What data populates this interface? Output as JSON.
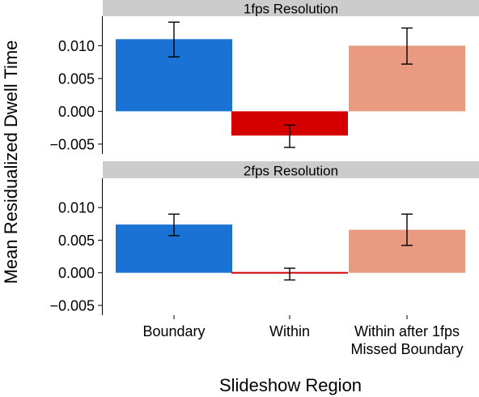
{
  "chart_data": {
    "type": "bar",
    "xlabel": "Slideshow Region",
    "ylabel": "Mean Residualized Dwell Time",
    "categories": [
      [
        "Boundary"
      ],
      [
        "Within"
      ],
      [
        "Within after 1fps",
        "Missed Boundary"
      ]
    ],
    "colors": [
      "#1a73d4",
      "#d40000",
      "#e99a80"
    ],
    "ylim": [
      -0.0065,
      0.0145
    ],
    "yticks": [
      -0.005,
      0.0,
      0.005,
      0.01
    ],
    "ytick_labels": [
      "−0.005",
      "0.000",
      "0.005",
      "0.010"
    ],
    "grid": false,
    "facets": [
      {
        "title": "1fps Resolution",
        "values": [
          0.011,
          -0.0037,
          0.01
        ],
        "error_low": [
          0.0083,
          -0.0055,
          0.0072
        ],
        "error_high": [
          0.0136,
          -0.0021,
          0.0127
        ]
      },
      {
        "title": "2fps Resolution",
        "values": [
          0.0074,
          -0.0001,
          0.0066
        ],
        "error_low": [
          0.0057,
          -0.0011,
          0.0042
        ],
        "error_high": [
          0.009,
          0.0007,
          0.009
        ]
      }
    ]
  }
}
